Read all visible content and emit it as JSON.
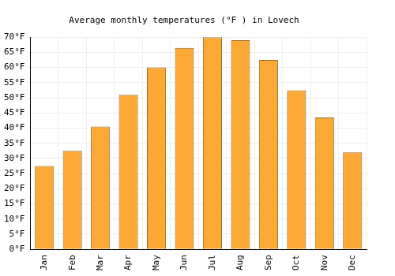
{
  "chart_data": {
    "type": "bar",
    "title": "Average monthly temperatures (°F ) in Lovech",
    "categories": [
      "Jan",
      "Feb",
      "Mar",
      "Apr",
      "May",
      "Jun",
      "Jul",
      "Aug",
      "Sep",
      "Oct",
      "Nov",
      "Dec"
    ],
    "values": [
      27.5,
      32.5,
      40.5,
      51,
      60,
      66.5,
      70,
      69,
      62.5,
      52.5,
      43.5,
      32
    ],
    "color": "#fba834",
    "ylim": [
      0,
      70
    ],
    "yticks": [
      {
        "value": 0,
        "label": "0°F"
      },
      {
        "value": 5,
        "label": "5°F"
      },
      {
        "value": 10,
        "label": "10°F"
      },
      {
        "value": 15,
        "label": "15°F"
      },
      {
        "value": 20,
        "label": "20°F"
      },
      {
        "value": 25,
        "label": "25°F"
      },
      {
        "value": 30,
        "label": "30°F"
      },
      {
        "value": 35,
        "label": "35°F"
      },
      {
        "value": 40,
        "label": "40°F"
      },
      {
        "value": 45,
        "label": "45°F"
      },
      {
        "value": 50,
        "label": "50°F"
      },
      {
        "value": 55,
        "label": "55°F"
      },
      {
        "value": 60,
        "label": "60°F"
      },
      {
        "value": 65,
        "label": "65°F"
      },
      {
        "value": 70,
        "label": "70°F"
      }
    ],
    "grid": true
  }
}
